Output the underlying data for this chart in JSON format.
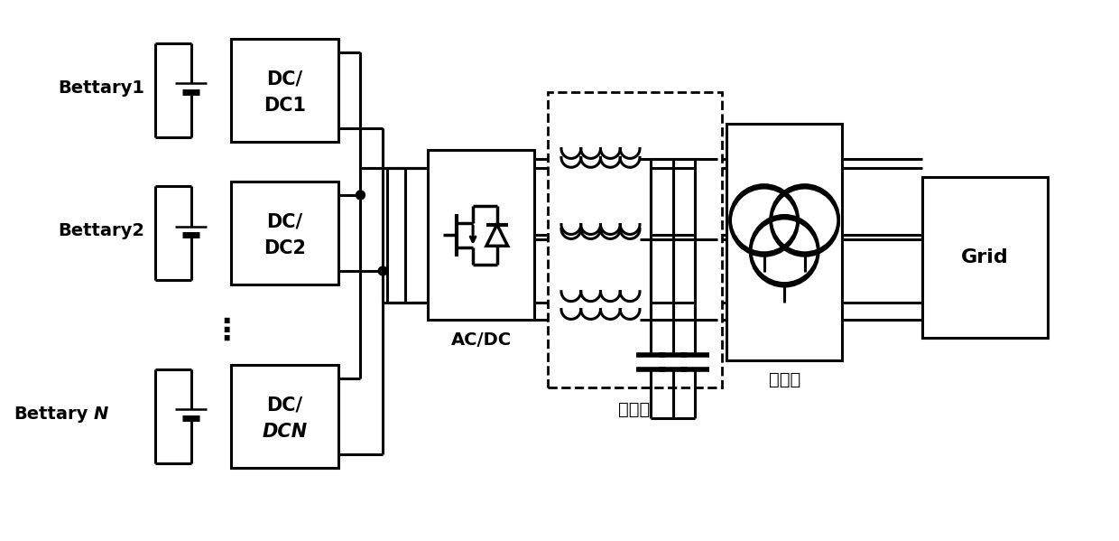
{
  "bg_color": "#ffffff",
  "line_color": "#000000",
  "fig_width": 12.4,
  "fig_height": 5.99,
  "dpi": 100,
  "battery_labels_roman": [
    "Bettary1",
    "Bettary2"
  ],
  "battery_label_italic": "BettaryN",
  "dc_labels": [
    "DC/\nDC1",
    "DC/\nDC2",
    "DC/\nDCN"
  ],
  "acdc_label": "AC/DC",
  "filter_label": "滤波器",
  "transformer_label": "变压器",
  "grid_label": "Grid",
  "dots": "⋮"
}
